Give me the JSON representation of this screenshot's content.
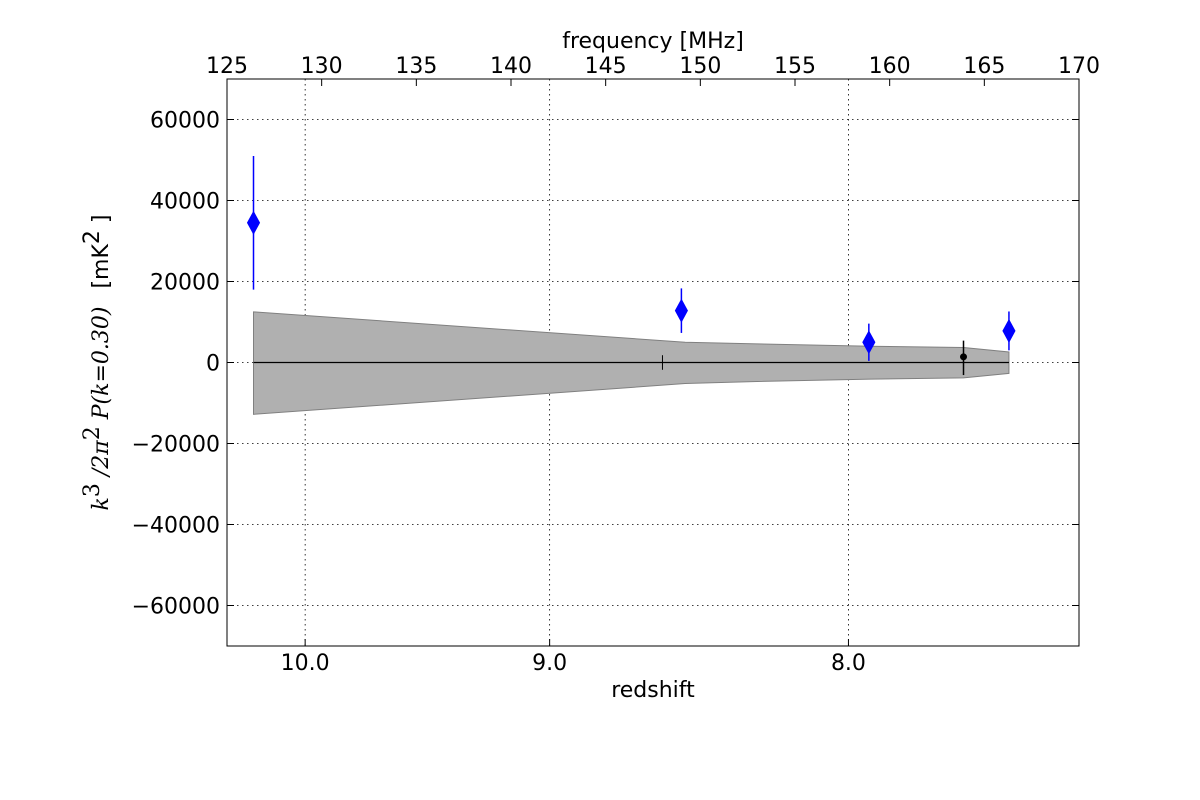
{
  "chart_data": {
    "type": "scatter",
    "xlabel": "redshift",
    "x2label": "frequency [MHz]",
    "ylabel": {
      "lead": "k",
      "lead_sup": "3",
      "mid": " /2π",
      "mid_sup": "2",
      "tail": " P(k=0.30)",
      "unit_open": "[mK",
      "unit_sup": "2",
      "unit_close": " ]"
    },
    "xlim_frequency": [
      125,
      170
    ],
    "ylim": [
      -70000,
      70000
    ],
    "y_ticks": [
      "60000",
      "40000",
      "20000",
      "0",
      "−20000",
      "−40000",
      "−60000"
    ],
    "y_tick_values": [
      60000,
      40000,
      20000,
      0,
      -20000,
      -40000,
      -60000
    ],
    "x_top_ticks": [
      "125",
      "130",
      "135",
      "140",
      "145",
      "150",
      "155",
      "160",
      "165",
      "170"
    ],
    "x_top_tick_values": [
      125,
      130,
      135,
      140,
      145,
      150,
      155,
      160,
      165,
      170
    ],
    "x_bottom_ticks": [
      "10.0",
      "9.0",
      "8.0",
      "7.0"
    ],
    "x_bottom_tick_values": [
      10.0,
      9.0,
      8.0,
      7.0
    ],
    "grid": true,
    "band": {
      "color": "#b0b0b0",
      "edge_color": "#808080",
      "points": [
        {
          "freq": 126.4,
          "upper": 12500,
          "lower": -12800
        },
        {
          "freq": 149.2,
          "upper": 5000,
          "lower": -5200
        },
        {
          "freq": 153.0,
          "upper": 4600,
          "lower": -4700
        },
        {
          "freq": 159.0,
          "upper": 4000,
          "lower": -4100
        },
        {
          "freq": 163.9,
          "upper": 3700,
          "lower": -3800
        },
        {
          "freq": 166.3,
          "upper": 2600,
          "lower": -2700
        }
      ]
    },
    "series": [
      {
        "color": "#0000ff",
        "marker": "diamond",
        "points": [
          {
            "freq": 126.4,
            "y": 34500,
            "err_low": 16500,
            "err_high": 16500
          },
          {
            "freq": 149.0,
            "y": 12800,
            "err_low": 5500,
            "err_high": 5500
          },
          {
            "freq": 158.9,
            "y": 5000,
            "err_low": 4600,
            "err_high": 4600
          },
          {
            "freq": 166.3,
            "y": 7800,
            "err_low": 4800,
            "err_high": 4800
          }
        ]
      },
      {
        "color": "#000000",
        "marker": "dot",
        "points": [
          {
            "freq": 163.9,
            "y": 1400,
            "err_low": 4500,
            "err_high": 4000
          }
        ]
      }
    ],
    "zero_line": {
      "from_freq": 126.4,
      "to_freq": 166.3,
      "color": "#000000"
    },
    "small_tick": {
      "freq": 148.0,
      "y": 0,
      "half_height": 1800
    }
  }
}
